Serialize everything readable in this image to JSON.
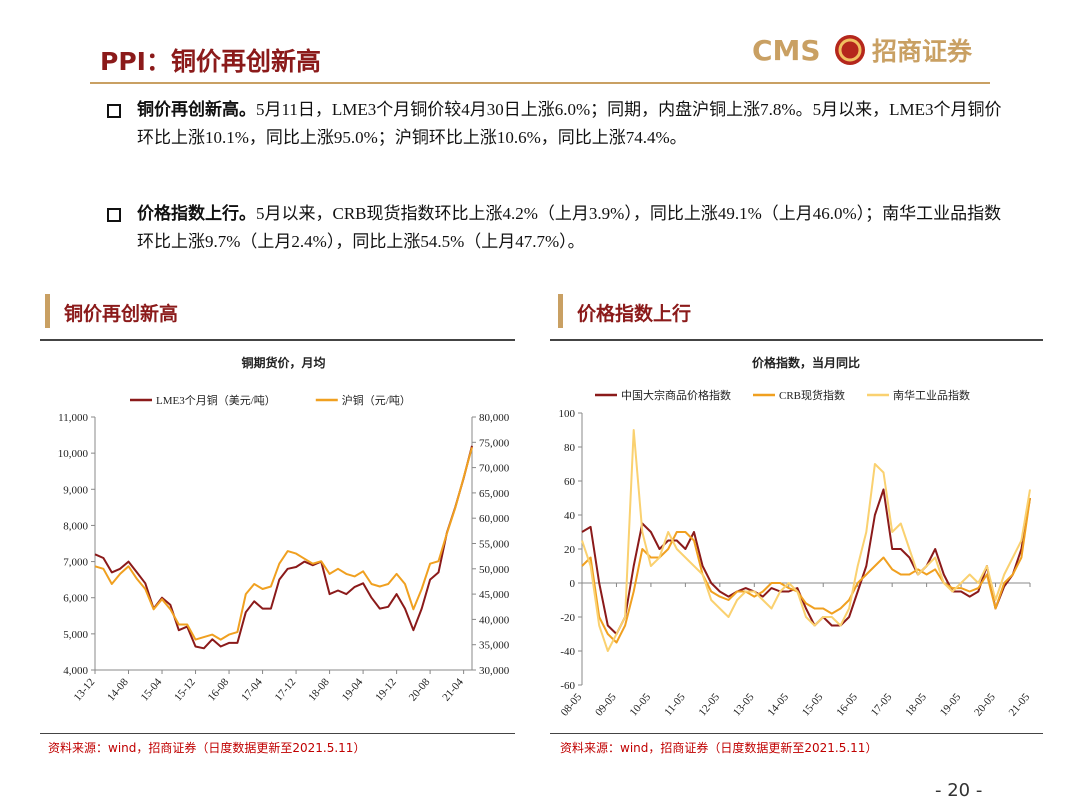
{
  "header": {
    "title": "PPI：铜价再创新高",
    "logo_text": "CMS",
    "company": "招商证券"
  },
  "bullets": [
    {
      "lead": "铜价再创新高。",
      "text": "5月11日，LME3个月铜价较4月30日上涨6.0%；同期，内盘沪铜上涨7.8%。5月以来，LME3个月铜价环比上涨10.1%，同比上涨95.0%；沪铜环比上涨10.6%，同比上涨74.4%。"
    },
    {
      "lead": "价格指数上行。",
      "text": "5月以来，CRB现货指数环比上涨4.2%（上月3.9%），同比上涨49.1%（上月46.0%）；南华工业品指数环比上涨9.7%（上月2.4%），同比上涨54.5%（上月47.7%）。"
    }
  ],
  "panels": [
    {
      "heading": "铜价再创新高",
      "source": "资料来源：wind，招商证券（日度数据更新至2021.5.11）"
    },
    {
      "heading": "价格指数上行",
      "source": "资料来源：wind，招商证券（日度数据更新至2021.5.11）"
    }
  ],
  "chart_data": [
    {
      "type": "line",
      "title": "铜期货价，月均",
      "categories": [
        "13-12",
        null,
        null,
        null,
        "14-08",
        null,
        null,
        null,
        "15-04",
        null,
        null,
        null,
        "15-12",
        null,
        null,
        null,
        "16-08",
        null,
        null,
        null,
        "17-04",
        null,
        null,
        null,
        "17-12",
        null,
        null,
        null,
        "18-08",
        null,
        null,
        null,
        "19-04",
        null,
        null,
        null,
        "19-12",
        null,
        null,
        null,
        "20-08",
        null,
        null,
        null,
        "21-04",
        null
      ],
      "series": [
        {
          "name": "LME3个月铜（美元/吨）",
          "color": "#8b1a1a",
          "values": [
            7200,
            7100,
            6700,
            6800,
            7000,
            6700,
            6400,
            5700,
            6000,
            5800,
            5100,
            5200,
            4650,
            4600,
            4850,
            4650,
            4750,
            4750,
            5600,
            5900,
            5700,
            5700,
            6500,
            6800,
            6850,
            7000,
            6900,
            7000,
            6100,
            6200,
            6100,
            6300,
            6400,
            6000,
            5700,
            5750,
            6100,
            5700,
            5100,
            5700,
            6500,
            6700,
            7800,
            8500,
            9300,
            10200
          ]
        },
        {
          "name": "沪铜（元/吨）",
          "color": "#f0a020",
          "axis": "y2",
          "values": [
            50500,
            50000,
            47000,
            49000,
            50500,
            48000,
            46000,
            42000,
            44000,
            42000,
            39000,
            39000,
            36000,
            36500,
            37000,
            36000,
            37000,
            37500,
            45000,
            47000,
            46000,
            46500,
            51000,
            53500,
            53000,
            52000,
            51000,
            51500,
            49000,
            50000,
            49000,
            48500,
            49500,
            47000,
            46500,
            47000,
            49000,
            47000,
            42000,
            46000,
            51000,
            51500,
            57000,
            62000,
            68000,
            74000
          ]
        }
      ],
      "ylim": [
        4000,
        11000
      ],
      "yticks": [
        {
          "value": 4000,
          "label": "4,000"
        },
        {
          "value": 5000,
          "label": "5,000"
        },
        {
          "value": 6000,
          "label": "6,000"
        },
        {
          "value": 7000,
          "label": "7,000"
        },
        {
          "value": 8000,
          "label": "8,000"
        },
        {
          "value": 9000,
          "label": "9,000"
        },
        {
          "value": 10000,
          "label": "10,000"
        },
        {
          "value": 11000,
          "label": "11,000"
        }
      ],
      "y2lim": [
        30000,
        80000
      ],
      "y2ticks": [
        {
          "value": 30000,
          "label": "30,000"
        },
        {
          "value": 35000,
          "label": "35,000"
        },
        {
          "value": 40000,
          "label": "40,000"
        },
        {
          "value": 45000,
          "label": "45,000"
        },
        {
          "value": 50000,
          "label": "50,000"
        },
        {
          "value": 55000,
          "label": "55,000"
        },
        {
          "value": 60000,
          "label": "60,000"
        },
        {
          "value": 65000,
          "label": "65,000"
        },
        {
          "value": 70000,
          "label": "70,000"
        },
        {
          "value": 75000,
          "label": "75,000"
        },
        {
          "value": 80000,
          "label": "80,000"
        }
      ]
    },
    {
      "type": "line",
      "title": "价格指数，当月同比",
      "categories": [
        "08-05",
        null,
        null,
        null,
        "09-05",
        null,
        null,
        null,
        "10-05",
        null,
        null,
        null,
        "11-05",
        null,
        null,
        null,
        "12-05",
        null,
        null,
        null,
        "13-05",
        null,
        null,
        null,
        "14-05",
        null,
        null,
        null,
        "15-05",
        null,
        null,
        null,
        "16-05",
        null,
        null,
        null,
        "17-05",
        null,
        null,
        null,
        "18-05",
        null,
        null,
        null,
        "19-05",
        null,
        null,
        null,
        "20-05",
        null,
        null,
        null,
        "21-05"
      ],
      "series": [
        {
          "name": "中国大宗商品价格指数",
          "color": "#8b1a1a",
          "values": [
            30,
            33,
            0,
            -25,
            -30,
            -20,
            10,
            35,
            30,
            20,
            25,
            25,
            20,
            30,
            10,
            0,
            -5,
            -8,
            -5,
            -3,
            -5,
            -8,
            -3,
            -5,
            -5,
            -3,
            -15,
            -25,
            -20,
            -25,
            -25,
            -20,
            -5,
            10,
            40,
            55,
            20,
            20,
            15,
            5,
            10,
            20,
            5,
            -5,
            -5,
            -8,
            -5,
            10,
            -15,
            -2,
            5,
            20,
            50
          ]
        },
        {
          "name": "CRB现货指数",
          "color": "#f0a020",
          "values": [
            10,
            15,
            -20,
            -30,
            -35,
            -25,
            -5,
            20,
            15,
            15,
            20,
            30,
            30,
            25,
            5,
            -5,
            -8,
            -10,
            -5,
            -5,
            -8,
            -5,
            0,
            0,
            -3,
            -5,
            -12,
            -15,
            -15,
            -18,
            -15,
            -10,
            0,
            5,
            10,
            15,
            8,
            5,
            5,
            8,
            5,
            8,
            0,
            -3,
            -3,
            -5,
            -3,
            5,
            -15,
            0,
            5,
            15,
            50
          ]
        },
        {
          "name": "南华工业品指数",
          "color": "#fad170",
          "values": [
            25,
            10,
            -25,
            -40,
            -30,
            -20,
            90,
            30,
            10,
            15,
            30,
            20,
            15,
            10,
            5,
            -10,
            -15,
            -20,
            -10,
            -5,
            -5,
            -10,
            -15,
            -5,
            0,
            -5,
            -20,
            -25,
            -20,
            -20,
            -25,
            -15,
            10,
            30,
            70,
            65,
            30,
            35,
            20,
            5,
            10,
            15,
            0,
            -5,
            0,
            5,
            0,
            10,
            -10,
            5,
            15,
            25,
            55
          ]
        }
      ],
      "ylim": [
        -60,
        100
      ],
      "yticks": [
        -60,
        -40,
        -20,
        0,
        20,
        40,
        60,
        80,
        100
      ]
    }
  ],
  "page_number": "- 20 -"
}
